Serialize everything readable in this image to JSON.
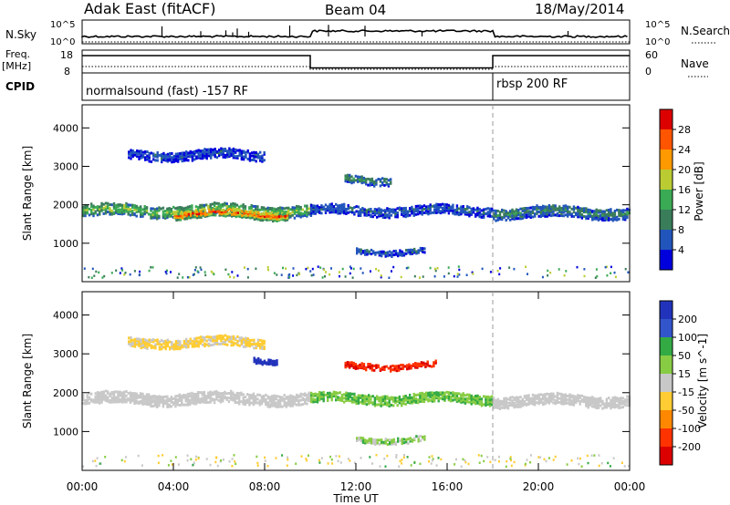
{
  "header": {
    "title": "Adak East (fitACF)",
    "beam": "Beam 04",
    "date": "18/May/2014"
  },
  "chart_data": [
    {
      "type": "line",
      "panel": "noise",
      "left_label": "N.Sky",
      "right_label": "N.Search",
      "left_ticks": [
        "10^5",
        "10^0"
      ],
      "right_ticks": [
        "10^5",
        "10^0"
      ],
      "note": "noise sky (solid) and noise search (dotted), log scale"
    },
    {
      "type": "line",
      "panel": "frequency",
      "left_label": "Freq.",
      "left_unit": "[MHz]",
      "right_label": "Nave",
      "left_ticks": [
        18,
        8
      ],
      "right_ticks": [
        60,
        0
      ],
      "freq_series": [
        {
          "x_start": 0,
          "x_end": 10,
          "value": 16
        },
        {
          "x_start": 10,
          "x_end": 18,
          "value": 10
        },
        {
          "x_start": 18,
          "x_end": 24,
          "value": 16
        }
      ]
    },
    {
      "type": "table",
      "panel": "cpid",
      "label": "CPID",
      "segments": [
        {
          "x_start": 0,
          "x_end": 18,
          "text": "normalsound (fast) -157 RF"
        },
        {
          "x_start": 18,
          "x_end": 24,
          "text": "rbsp 200 RF"
        }
      ]
    },
    {
      "type": "heatmap",
      "panel": "power",
      "ylabel": "Slant Range [km]",
      "ylim": [
        0,
        4600
      ],
      "yticks": [
        1000,
        2000,
        3000,
        4000
      ],
      "colorbar_label": "Power [dB]",
      "colorbar_ticks": [
        4,
        8,
        12,
        16,
        20,
        24,
        28
      ],
      "colorbar_range": [
        0,
        32
      ],
      "colors": [
        "#0000dd",
        "#2255bb",
        "#3a7d5a",
        "#3aaa55",
        "#bbcc33",
        "#ff9900",
        "#ff5500",
        "#dd0000"
      ],
      "bands": [
        {
          "t0": 0,
          "t1": 10,
          "r_center": 1850,
          "r_width": 300,
          "level": 14
        },
        {
          "t0": 4,
          "t1": 9,
          "r_center": 1750,
          "r_width": 200,
          "level": 22
        },
        {
          "t0": 10,
          "t1": 18,
          "r_center": 1850,
          "r_width": 250,
          "level": 6
        },
        {
          "t0": 18,
          "t1": 24,
          "r_center": 1800,
          "r_width": 280,
          "level": 9
        },
        {
          "t0": 2,
          "t1": 8,
          "r_center": 3300,
          "r_width": 250,
          "level": 5
        },
        {
          "t0": 12,
          "t1": 15,
          "r_center": 800,
          "r_width": 150,
          "level": 6
        },
        {
          "t0": 11.5,
          "t1": 13.5,
          "r_center": 2650,
          "r_width": 200,
          "level": 10
        }
      ]
    },
    {
      "type": "heatmap",
      "panel": "velocity",
      "ylabel": "Slant Range [km]",
      "xlabel": "Time UT",
      "ylim": [
        0,
        4600
      ],
      "yticks": [
        1000,
        2000,
        3000,
        4000
      ],
      "xlim": [
        0,
        24
      ],
      "xticks": [
        "00:00",
        "04:00",
        "08:00",
        "12:00",
        "16:00",
        "20:00",
        "00:00"
      ],
      "colorbar_label": "Velocity [m s^-1]",
      "colorbar_ticks": [
        200,
        100,
        50,
        15,
        -15,
        -50,
        -100,
        -200
      ],
      "colors": [
        "#2233bb",
        "#3355cc",
        "#33aa44",
        "#88cc44",
        "#c8c8c8",
        "#ffcc33",
        "#ff8800",
        "#ff3300",
        "#dd0000"
      ],
      "bands": [
        {
          "t0": 0,
          "t1": 10,
          "r_center": 1850,
          "r_width": 300,
          "velocity": 0
        },
        {
          "t0": 10,
          "t1": 18,
          "r_center": 1850,
          "r_width": 250,
          "velocity": 30
        },
        {
          "t0": 18,
          "t1": 24,
          "r_center": 1800,
          "r_width": 280,
          "velocity": 0
        },
        {
          "t0": 2,
          "t1": 8,
          "r_center": 3300,
          "r_width": 250,
          "velocity": -20
        },
        {
          "t0": 7.5,
          "t1": 8.5,
          "r_center": 2850,
          "r_width": 150,
          "velocity": 200
        },
        {
          "t0": 11.5,
          "t1": 15.5,
          "r_center": 2700,
          "r_width": 150,
          "velocity": -200
        },
        {
          "t0": 12,
          "t1": 15,
          "r_center": 800,
          "r_width": 150,
          "velocity": 20
        }
      ]
    }
  ]
}
